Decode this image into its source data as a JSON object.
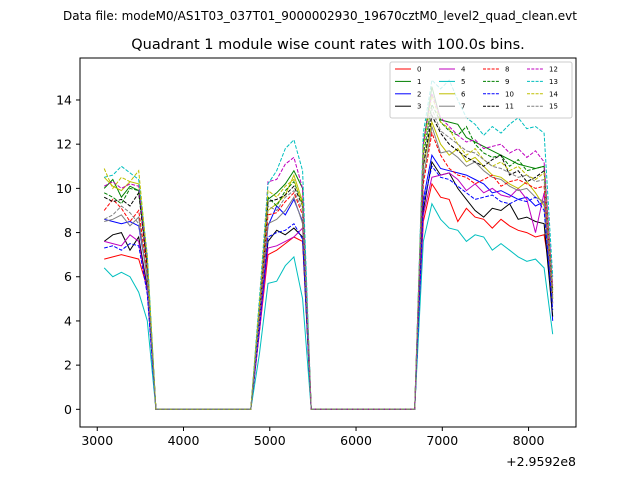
{
  "suptitle": "Data file: modeM0/AS1T03_037T01_9000002930_19670cztM0_level2_quad_clean.evt",
  "chart_data": {
    "type": "line",
    "title": "Quadrant 1 module wise count rates with 100.0s bins.",
    "xlabel": "",
    "ylabel": "",
    "x_offset_label": "+2.9592e8",
    "xlim": [
      2800,
      8550
    ],
    "ylim": [
      -0.8,
      15.9
    ],
    "xticks": [
      3000,
      4000,
      5000,
      6000,
      7000,
      8000
    ],
    "xtick_labels": [
      "3000",
      "4000",
      "5000",
      "6000",
      "7000",
      "8000"
    ],
    "yticks": [
      0,
      2,
      4,
      6,
      8,
      10,
      12,
      14
    ],
    "ytick_labels": [
      "0",
      "2",
      "4",
      "6",
      "8",
      "10",
      "12",
      "14"
    ],
    "legend_position": "upper right",
    "legend_columns": 4,
    "x": [
      3080,
      3180,
      3280,
      3380,
      3480,
      3580,
      3680,
      3780,
      3880,
      3980,
      4080,
      4180,
      4280,
      4380,
      4480,
      4580,
      4680,
      4780,
      4880,
      4980,
      5080,
      5180,
      5280,
      5380,
      5480,
      5580,
      5680,
      5780,
      5880,
      5980,
      6080,
      6180,
      6280,
      6380,
      6480,
      6580,
      6680,
      6780,
      6880,
      6980,
      7080,
      7180,
      7280,
      7380,
      7480,
      7580,
      7680,
      7780,
      7880,
      7980,
      8080,
      8180,
      8280
    ],
    "series": [
      {
        "name": "0",
        "color": "#ff0000",
        "dash": "solid",
        "values": [
          6.8,
          6.9,
          7.0,
          6.9,
          6.8,
          5.5,
          0,
          0,
          0,
          0,
          0,
          0,
          0,
          0,
          0,
          0,
          0,
          0,
          3.5,
          7.0,
          7.2,
          7.5,
          7.8,
          7.6,
          0,
          0,
          0,
          0,
          0,
          0,
          0,
          0,
          0,
          0,
          0,
          0,
          0,
          8.5,
          10.2,
          9.6,
          9.5,
          8.5,
          9.1,
          8.7,
          8.6,
          8.2,
          8.6,
          8.3,
          8.1,
          8.0,
          7.8,
          7.9,
          5.5
        ]
      },
      {
        "name": "1",
        "color": "#008000",
        "dash": "solid",
        "values": [
          10.0,
          10.4,
          9.6,
          10.1,
          9.9,
          6.5,
          0,
          0,
          0,
          0,
          0,
          0,
          0,
          0,
          0,
          0,
          0,
          0,
          4.5,
          9.5,
          9.8,
          10.2,
          10.8,
          10.0,
          0,
          0,
          0,
          0,
          0,
          0,
          0,
          0,
          0,
          0,
          0,
          0,
          0,
          12.0,
          14.6,
          13.1,
          13.0,
          12.9,
          12.3,
          12.1,
          11.9,
          11.7,
          11.5,
          11.3,
          11.1,
          11.0,
          10.9,
          11.0,
          5.0
        ]
      },
      {
        "name": "2",
        "color": "#0000ff",
        "dash": "solid",
        "values": [
          8.6,
          8.5,
          8.4,
          8.5,
          8.3,
          6.0,
          0,
          0,
          0,
          0,
          0,
          0,
          0,
          0,
          0,
          0,
          0,
          0,
          4.0,
          8.3,
          9.2,
          8.8,
          9.5,
          8.5,
          0,
          0,
          0,
          0,
          0,
          0,
          0,
          0,
          0,
          0,
          0,
          0,
          0,
          9.5,
          11.5,
          10.9,
          10.8,
          10.7,
          10.6,
          10.4,
          10.2,
          9.8,
          9.9,
          9.7,
          9.5,
          9.6,
          9.2,
          9.4,
          4.0
        ]
      },
      {
        "name": "3",
        "color": "#000000",
        "dash": "solid",
        "values": [
          7.6,
          7.9,
          8.0,
          7.2,
          7.8,
          5.5,
          0,
          0,
          0,
          0,
          0,
          0,
          0,
          0,
          0,
          0,
          0,
          0,
          3.6,
          7.6,
          8.1,
          7.9,
          8.2,
          7.8,
          0,
          0,
          0,
          0,
          0,
          0,
          0,
          0,
          0,
          0,
          0,
          0,
          0,
          9.0,
          11.2,
          10.6,
          10.7,
          10.0,
          9.5,
          9.0,
          8.7,
          9.1,
          9.0,
          9.3,
          8.6,
          8.7,
          8.5,
          8.4,
          4.2
        ]
      },
      {
        "name": "4",
        "color": "#bf00bf",
        "dash": "solid",
        "values": [
          7.6,
          7.5,
          7.4,
          7.9,
          7.6,
          5.3,
          0,
          0,
          0,
          0,
          0,
          0,
          0,
          0,
          0,
          0,
          0,
          0,
          3.5,
          7.3,
          7.4,
          7.6,
          7.8,
          8.2,
          0,
          0,
          0,
          0,
          0,
          0,
          0,
          0,
          0,
          0,
          0,
          0,
          0,
          8.8,
          10.5,
          10.6,
          10.7,
          10.4,
          9.9,
          10.2,
          9.8,
          10.0,
          9.7,
          9.6,
          10.0,
          9.5,
          8.0,
          9.8,
          4.8
        ]
      },
      {
        "name": "5",
        "color": "#00bfbf",
        "dash": "solid",
        "values": [
          6.4,
          6.0,
          6.2,
          6.0,
          5.3,
          4.0,
          0,
          0,
          0,
          0,
          0,
          0,
          0,
          0,
          0,
          0,
          0,
          0,
          2.5,
          5.7,
          5.8,
          6.5,
          6.9,
          5.0,
          0,
          0,
          0,
          0,
          0,
          0,
          0,
          0,
          0,
          0,
          0,
          0,
          0,
          7.6,
          9.3,
          8.6,
          8.2,
          8.1,
          7.6,
          7.9,
          7.8,
          7.2,
          7.5,
          7.2,
          6.9,
          6.7,
          6.8,
          6.4,
          3.4
        ]
      },
      {
        "name": "6",
        "color": "#bfbf00",
        "dash": "solid",
        "values": [
          10.5,
          10.1,
          9.9,
          10.3,
          10.2,
          6.9,
          0,
          0,
          0,
          0,
          0,
          0,
          0,
          0,
          0,
          0,
          0,
          0,
          4.8,
          9.0,
          9.3,
          9.7,
          10.6,
          9.4,
          0,
          0,
          0,
          0,
          0,
          0,
          0,
          0,
          0,
          0,
          0,
          0,
          0,
          11.0,
          13.0,
          12.0,
          11.5,
          11.8,
          11.2,
          11.4,
          11.0,
          10.6,
          10.5,
          10.2,
          10.0,
          10.3,
          9.8,
          9.2,
          5.0
        ]
      },
      {
        "name": "7",
        "color": "#808080",
        "dash": "solid",
        "values": [
          8.5,
          8.6,
          8.8,
          8.3,
          8.7,
          5.8,
          0,
          0,
          0,
          0,
          0,
          0,
          0,
          0,
          0,
          0,
          0,
          0,
          3.9,
          8.4,
          8.6,
          9.0,
          9.6,
          8.4,
          0,
          0,
          0,
          0,
          0,
          0,
          0,
          0,
          0,
          0,
          0,
          0,
          0,
          10.5,
          12.8,
          11.6,
          11.7,
          11.4,
          11.0,
          11.2,
          10.8,
          10.5,
          10.4,
          10.1,
          9.9,
          10.0,
          9.6,
          9.4,
          4.8
        ]
      },
      {
        "name": "8",
        "color": "#ff0000",
        "dash": "dashed",
        "values": [
          9.0,
          9.5,
          9.1,
          8.5,
          9.0,
          6.2,
          0,
          0,
          0,
          0,
          0,
          0,
          0,
          0,
          0,
          0,
          0,
          0,
          4.1,
          8.8,
          8.9,
          9.4,
          9.8,
          8.8,
          0,
          0,
          0,
          0,
          0,
          0,
          0,
          0,
          0,
          0,
          0,
          0,
          0,
          10.2,
          12.5,
          11.5,
          10.9,
          10.6,
          10.5,
          10.2,
          10.4,
          10.6,
          10.1,
          10.3,
          10.4,
          10.2,
          10.0,
          10.1,
          5.1
        ]
      },
      {
        "name": "9",
        "color": "#008000",
        "dash": "dashed",
        "values": [
          9.8,
          9.6,
          9.3,
          10.0,
          9.9,
          6.6,
          0,
          0,
          0,
          0,
          0,
          0,
          0,
          0,
          0,
          0,
          0,
          0,
          4.5,
          9.6,
          9.2,
          9.9,
          10.3,
          9.3,
          0,
          0,
          0,
          0,
          0,
          0,
          0,
          0,
          0,
          0,
          0,
          0,
          0,
          11.5,
          13.8,
          13.0,
          12.6,
          12.4,
          12.8,
          12.0,
          11.6,
          11.4,
          11.5,
          11.0,
          11.3,
          10.8,
          10.9,
          11.0,
          5.4
        ]
      },
      {
        "name": "10",
        "color": "#0000ff",
        "dash": "dashed",
        "values": [
          7.3,
          7.4,
          7.2,
          7.5,
          7.4,
          5.2,
          0,
          0,
          0,
          0,
          0,
          0,
          0,
          0,
          0,
          0,
          0,
          0,
          3.7,
          7.8,
          8.0,
          8.1,
          8.4,
          7.7,
          0,
          0,
          0,
          0,
          0,
          0,
          0,
          0,
          0,
          0,
          0,
          0,
          0,
          9.3,
          11.0,
          10.5,
          10.4,
          10.1,
          9.8,
          9.5,
          9.6,
          9.7,
          9.4,
          9.3,
          9.5,
          9.4,
          9.6,
          9.0,
          4.5
        ]
      },
      {
        "name": "11",
        "color": "#000000",
        "dash": "dashed",
        "values": [
          9.6,
          9.4,
          9.5,
          9.2,
          9.8,
          6.4,
          0,
          0,
          0,
          0,
          0,
          0,
          0,
          0,
          0,
          0,
          0,
          0,
          4.3,
          9.4,
          9.5,
          9.7,
          10.1,
          9.2,
          0,
          0,
          0,
          0,
          0,
          0,
          0,
          0,
          0,
          0,
          0,
          0,
          0,
          11.0,
          13.3,
          12.5,
          12.0,
          11.7,
          11.4,
          11.2,
          11.0,
          11.3,
          11.5,
          10.6,
          10.8,
          10.3,
          10.5,
          10.8,
          5.2
        ]
      },
      {
        "name": "12",
        "color": "#bf00bf",
        "dash": "dashed",
        "values": [
          10.1,
          10.3,
          10.0,
          10.2,
          10.1,
          6.7,
          0,
          0,
          0,
          0,
          0,
          0,
          0,
          0,
          0,
          0,
          0,
          0,
          4.6,
          10.3,
          10.4,
          11.1,
          11.4,
          10.0,
          0,
          0,
          0,
          0,
          0,
          0,
          0,
          0,
          0,
          0,
          0,
          0,
          0,
          12.0,
          14.3,
          13.2,
          12.8,
          12.4,
          12.1,
          12.2,
          11.8,
          11.9,
          12.0,
          11.6,
          11.8,
          11.4,
          11.7,
          11.2,
          5.6
        ]
      },
      {
        "name": "13",
        "color": "#00bfbf",
        "dash": "dashed",
        "values": [
          10.5,
          10.6,
          11.0,
          10.7,
          10.4,
          7.0,
          0,
          0,
          0,
          0,
          0,
          0,
          0,
          0,
          0,
          0,
          0,
          0,
          5.0,
          10.2,
          10.8,
          11.8,
          12.2,
          10.8,
          0,
          0,
          0,
          0,
          0,
          0,
          0,
          0,
          0,
          0,
          0,
          0,
          0,
          12.5,
          14.9,
          14.5,
          14.9,
          14.0,
          13.2,
          12.9,
          12.4,
          12.8,
          12.5,
          12.9,
          13.2,
          12.7,
          12.8,
          12.5,
          6.0
        ]
      },
      {
        "name": "14",
        "color": "#bfbf00",
        "dash": "dashed",
        "values": [
          10.9,
          10.0,
          10.5,
          10.3,
          10.8,
          6.8,
          0,
          0,
          0,
          0,
          0,
          0,
          0,
          0,
          0,
          0,
          0,
          0,
          4.7,
          9.9,
          9.6,
          10.1,
          10.4,
          9.2,
          0,
          0,
          0,
          0,
          0,
          0,
          0,
          0,
          0,
          0,
          0,
          0,
          0,
          11.8,
          14.2,
          13.0,
          12.7,
          12.0,
          11.5,
          11.8,
          11.3,
          11.0,
          11.2,
          10.8,
          11.0,
          10.6,
          10.4,
          10.7,
          5.3
        ]
      },
      {
        "name": "15",
        "color": "#808080",
        "dash": "dashed",
        "values": [
          8.6,
          8.8,
          9.2,
          8.9,
          8.4,
          6.0,
          0,
          0,
          0,
          0,
          0,
          0,
          0,
          0,
          0,
          0,
          0,
          0,
          4.2,
          9.2,
          9.0,
          9.6,
          9.9,
          9.0,
          0,
          0,
          0,
          0,
          0,
          0,
          0,
          0,
          0,
          0,
          0,
          0,
          0,
          11.2,
          13.6,
          12.6,
          12.3,
          12.0,
          11.7,
          11.6,
          11.3,
          11.0,
          10.9,
          10.7,
          10.5,
          10.6,
          10.3,
          10.4,
          5.1
        ]
      }
    ]
  }
}
